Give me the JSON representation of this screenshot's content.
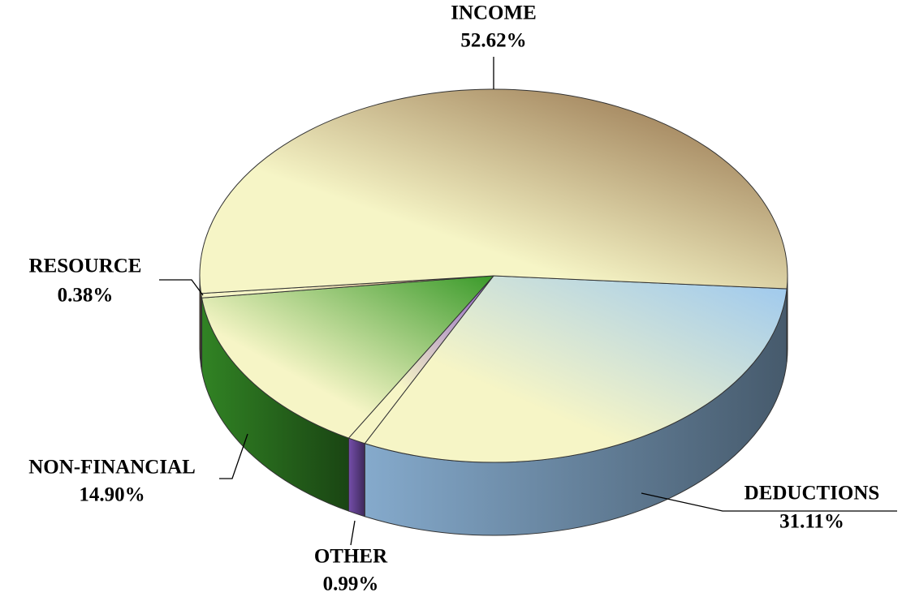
{
  "chart_data": {
    "type": "pie",
    "categories": [
      "DEDUCTIONS",
      "OTHER",
      "NON-FINANCIAL",
      "RESOURCE",
      "INCOME"
    ],
    "values": [
      31.11,
      0.99,
      14.9,
      0.38,
      52.62
    ],
    "value_labels": [
      "31.11%",
      "0.99%",
      "14.90%",
      "0.38%",
      "52.62%"
    ],
    "colors": [
      "#9cc8f0",
      "#8a5cc8",
      "#3a9a2a",
      "#d09070",
      "#8b6540"
    ]
  }
}
